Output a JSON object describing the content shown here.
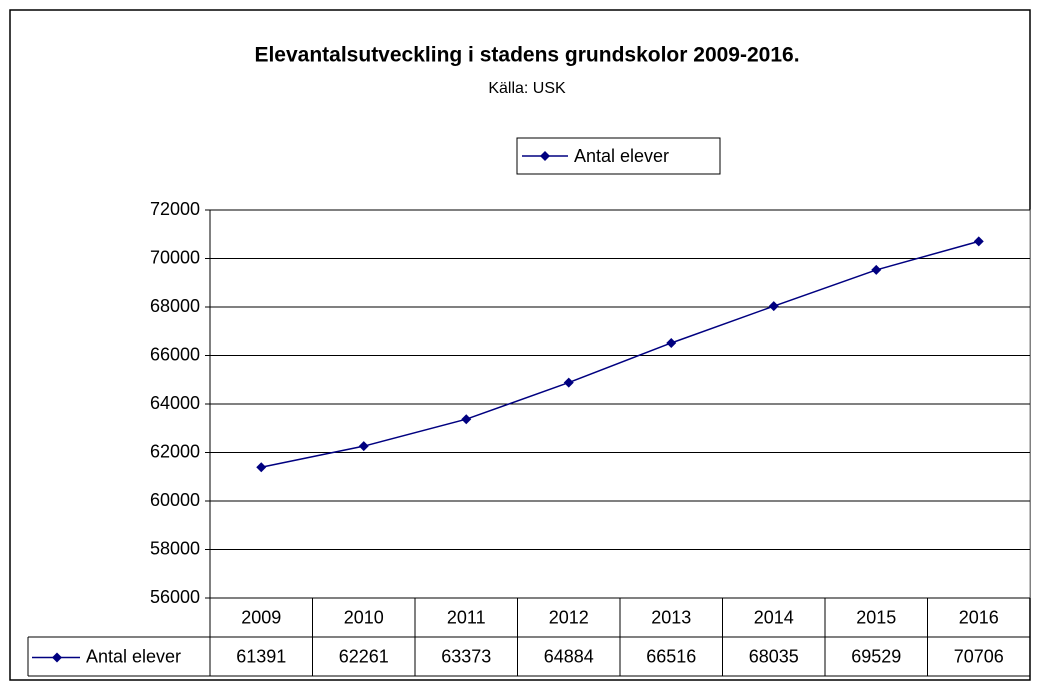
{
  "chart_data": {
    "type": "line",
    "title": "Elevantalsutveckling i stadens grundskolor 2009-2016.",
    "subtitle": "Källa: USK",
    "categories": [
      "2009",
      "2010",
      "2011",
      "2012",
      "2013",
      "2014",
      "2015",
      "2016"
    ],
    "series": [
      {
        "name": "Antal elever",
        "color": "#000080",
        "values": [
          61391,
          62261,
          63373,
          64884,
          66516,
          68035,
          69529,
          70706
        ]
      }
    ],
    "ylim": [
      56000,
      72000
    ],
    "yticks": [
      56000,
      58000,
      60000,
      62000,
      64000,
      66000,
      68000,
      70000,
      72000
    ],
    "grid": true,
    "legend": "top",
    "data_table": true
  }
}
